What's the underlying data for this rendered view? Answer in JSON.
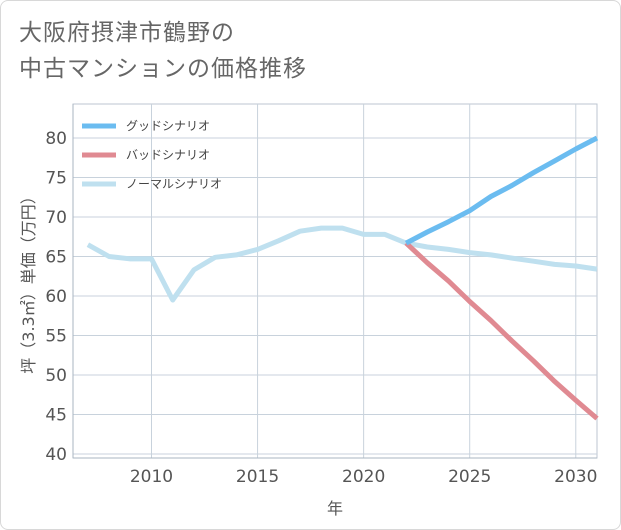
{
  "title": {
    "line1": "大阪府摂津市鶴野の",
    "line2": "中古マンションの価格推移"
  },
  "chart_data": {
    "type": "line",
    "title": "大阪府摂津市鶴野の中古マンションの価格推移",
    "xlabel": "年",
    "ylabel": "坪（3.3㎡）単価（万円）",
    "xlim": [
      2006.3,
      2031
    ],
    "ylim": [
      39.5,
      84.3
    ],
    "xticks": [
      2010,
      2015,
      2020,
      2025,
      2030
    ],
    "yticks": [
      40,
      45,
      50,
      55,
      60,
      65,
      70,
      75,
      80
    ],
    "grid": true,
    "legend_position": "top-left",
    "series": [
      {
        "name": "グッドシナリオ",
        "color": "#6bbcf0",
        "x": [
          2022,
          2023,
          2024,
          2025,
          2026,
          2027,
          2028,
          2029,
          2030,
          2031
        ],
        "y": [
          66.7,
          68.1,
          69.4,
          70.8,
          72.6,
          74.0,
          75.6,
          77.1,
          78.6,
          80.0
        ]
      },
      {
        "name": "バッドシナリオ",
        "color": "#e08a92",
        "x": [
          2022,
          2023,
          2024,
          2025,
          2026,
          2027,
          2028,
          2029,
          2030,
          2031
        ],
        "y": [
          66.7,
          64.2,
          61.9,
          59.3,
          56.9,
          54.3,
          51.8,
          49.2,
          46.8,
          44.5
        ]
      },
      {
        "name": "ノーマルシナリオ",
        "color": "#bfe0ef",
        "x": [
          2007,
          2008,
          2009,
          2010,
          2011,
          2012,
          2013,
          2014,
          2015,
          2016,
          2017,
          2018,
          2019,
          2020,
          2021,
          2022,
          2023,
          2024,
          2025,
          2026,
          2027,
          2028,
          2029,
          2030,
          2031
        ],
        "y": [
          66.5,
          65.0,
          64.7,
          64.7,
          59.5,
          63.3,
          64.9,
          65.2,
          65.9,
          67.0,
          68.2,
          68.6,
          68.6,
          67.8,
          67.8,
          66.7,
          66.2,
          65.9,
          65.5,
          65.2,
          64.8,
          64.4,
          64.0,
          63.8,
          63.4
        ]
      }
    ]
  }
}
